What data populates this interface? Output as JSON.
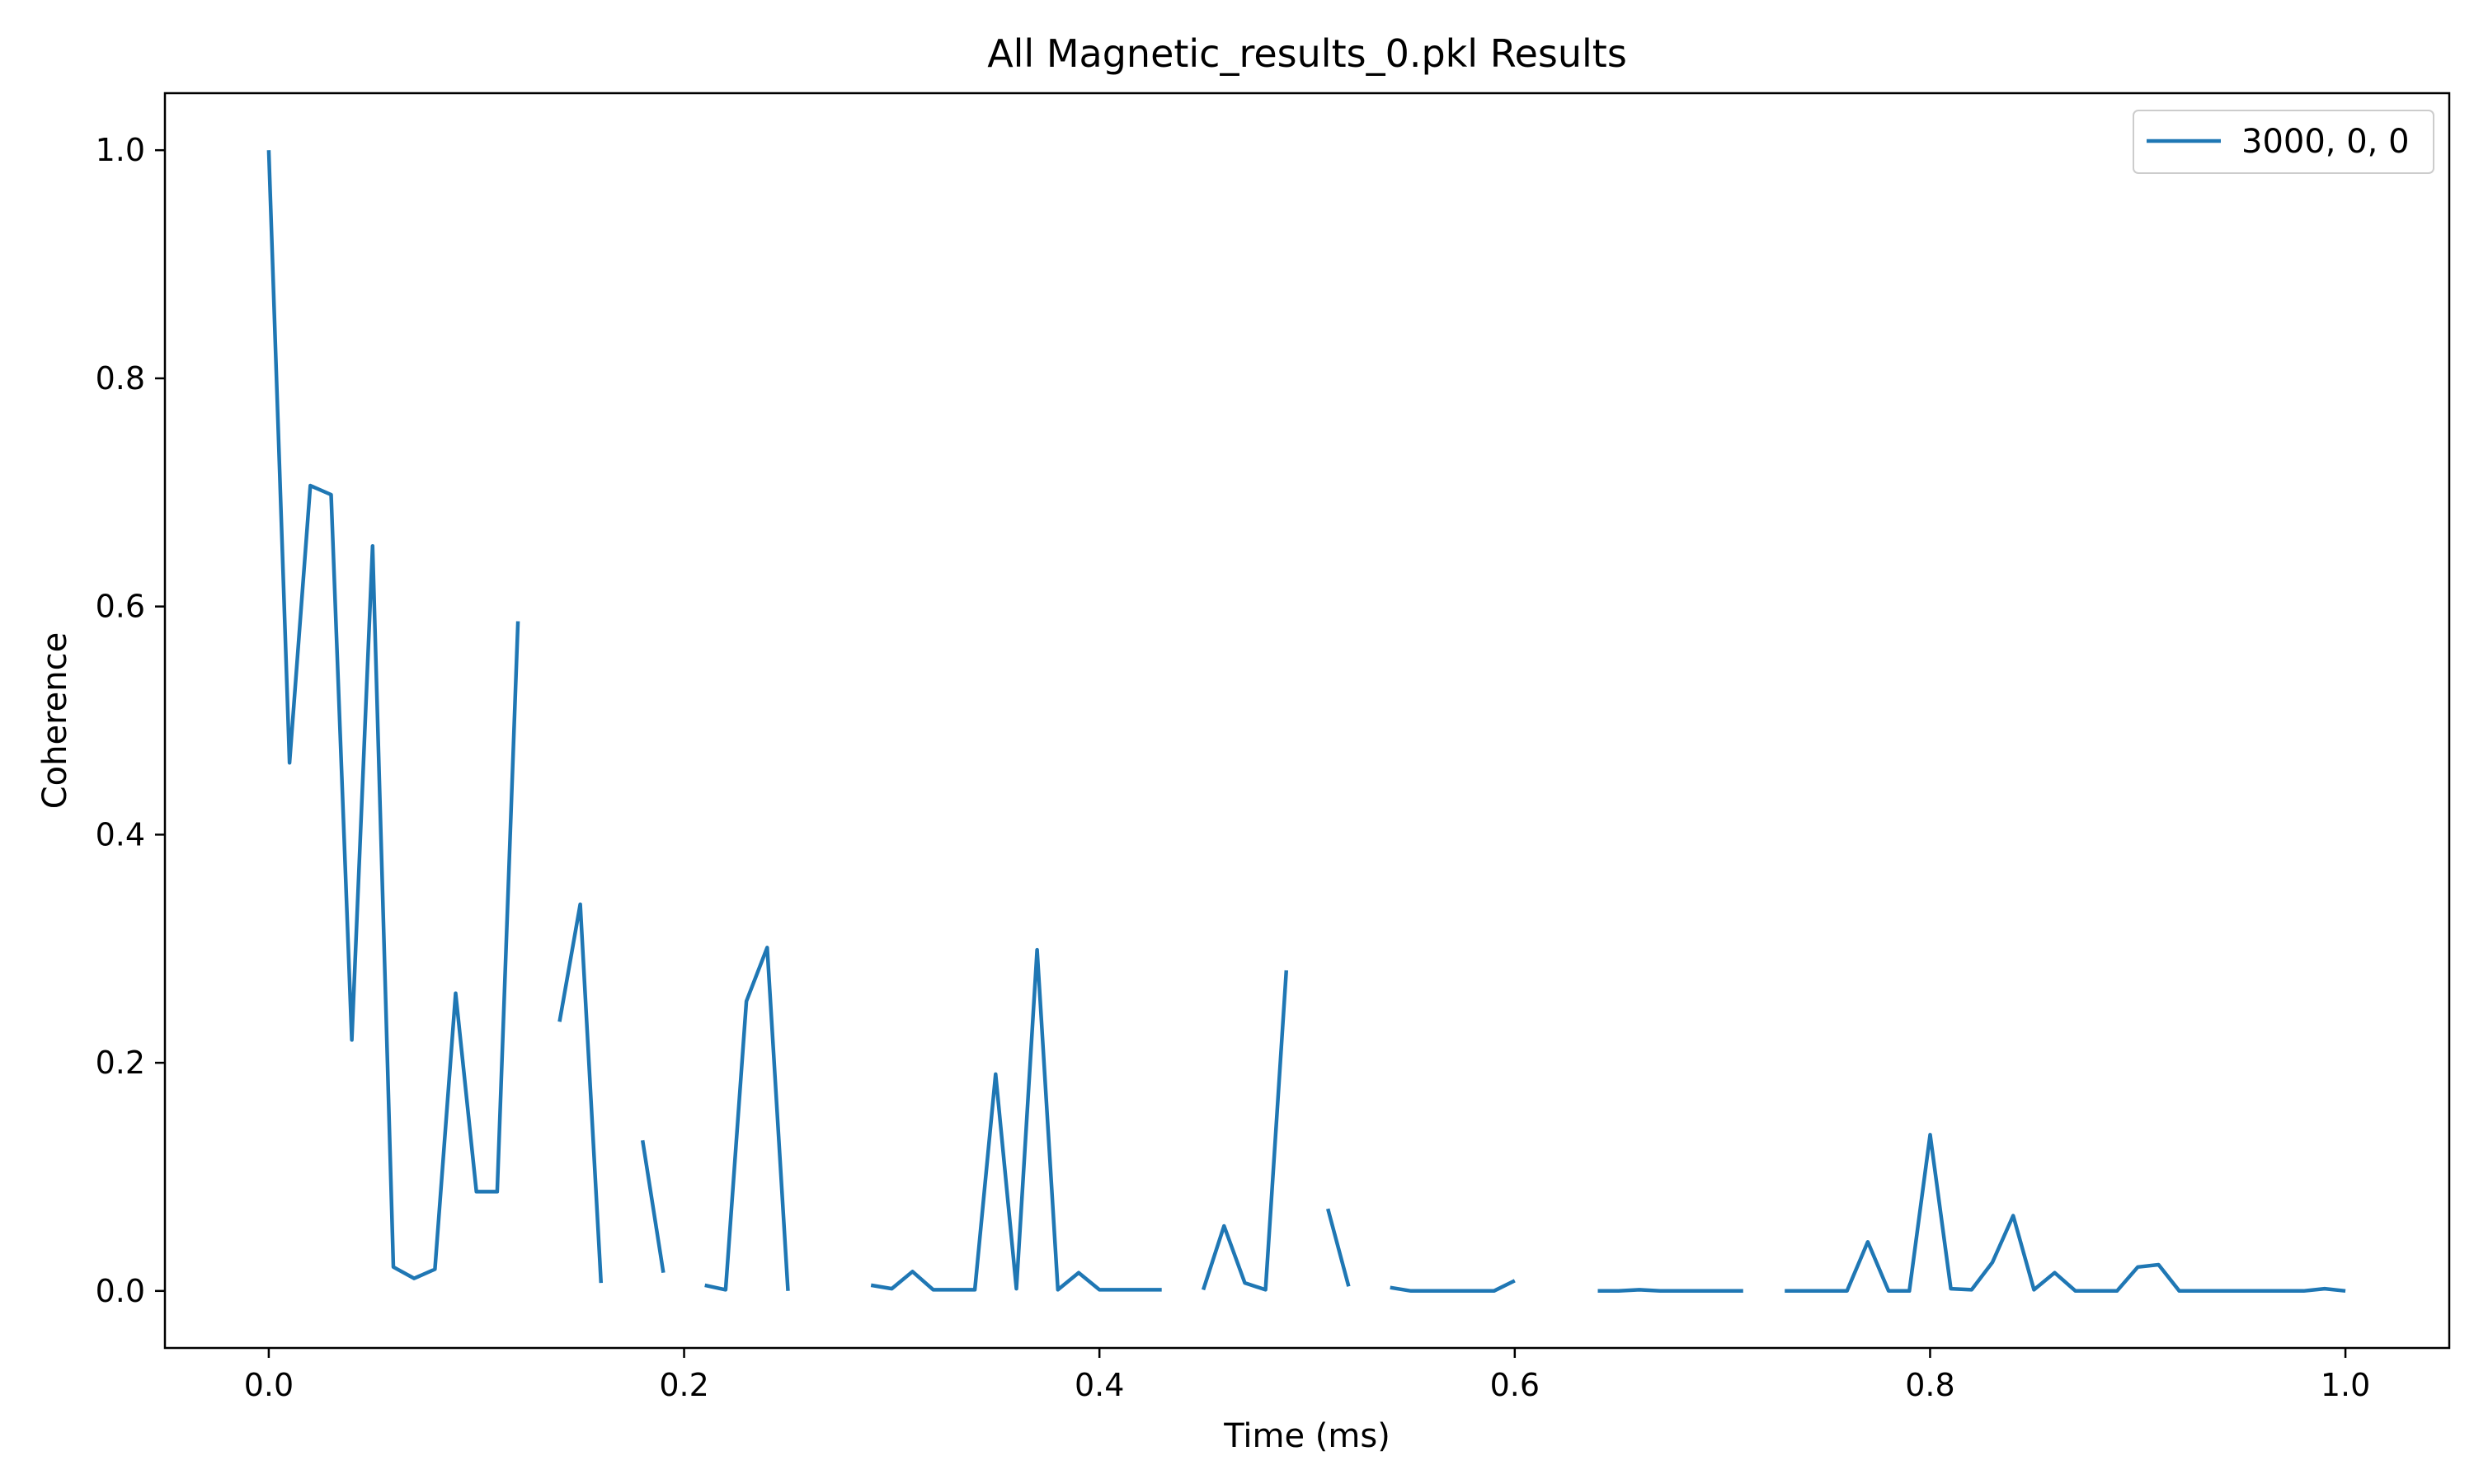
{
  "chart_data": {
    "type": "line",
    "title": "All Magnetic_results_0.pkl Results",
    "xlabel": "Time (ms)",
    "ylabel": "Coherence",
    "xlim": [
      -0.05,
      1.05
    ],
    "ylim": [
      -0.05,
      1.05
    ],
    "xticks": [
      0.0,
      0.2,
      0.4,
      0.6,
      0.8,
      1.0
    ],
    "xtick_labels": [
      "0.0",
      "0.2",
      "0.4",
      "0.6",
      "0.8",
      "1.0"
    ],
    "yticks": [
      0.0,
      0.2,
      0.4,
      0.6,
      0.8,
      1.0
    ],
    "ytick_labels": [
      "0.0",
      "0.2",
      "0.4",
      "0.6",
      "0.8",
      "1.0"
    ],
    "grid": false,
    "legend_position": "upper right",
    "series": [
      {
        "name": "3000, 0, 0",
        "color": "#1f77b4",
        "x": [
          0.0,
          0.01,
          0.02,
          0.03,
          0.04,
          0.05,
          0.06,
          0.07,
          0.08,
          0.09,
          0.1,
          0.11,
          0.12,
          0.13,
          0.14,
          0.15,
          0.16,
          0.17,
          0.18,
          0.19,
          0.2,
          0.21,
          0.22,
          0.23,
          0.24,
          0.25,
          0.26,
          0.27,
          0.28,
          0.29,
          0.3,
          0.31,
          0.32,
          0.33,
          0.34,
          0.35,
          0.36,
          0.37,
          0.38,
          0.39,
          0.4,
          0.41,
          0.42,
          0.43,
          0.44,
          0.45,
          0.46,
          0.47,
          0.48,
          0.49,
          0.5,
          0.51,
          0.52,
          0.53,
          0.54,
          0.55,
          0.56,
          0.57,
          0.58,
          0.59,
          0.6,
          0.61,
          0.62,
          0.63,
          0.64,
          0.65,
          0.66,
          0.67,
          0.68,
          0.69,
          0.7,
          0.71,
          0.72,
          0.73,
          0.74,
          0.75,
          0.76,
          0.77,
          0.78,
          0.79,
          0.8,
          0.81,
          0.82,
          0.83,
          0.84,
          0.85,
          0.86,
          0.87,
          0.88,
          0.89,
          0.9,
          0.91,
          0.92,
          0.93,
          0.94,
          0.95,
          0.96,
          0.97,
          0.98,
          0.99,
          1.0
        ],
        "y": [
          1.0,
          0.463,
          0.706,
          0.698,
          0.22,
          0.653,
          0.021,
          0.011,
          0.019,
          0.261,
          0.087,
          0.087,
          0.587,
          null,
          0.236,
          0.339,
          0.007,
          null,
          0.132,
          0.016,
          null,
          0.005,
          0.001,
          0.254,
          0.301,
          0.0,
          null,
          null,
          null,
          0.005,
          0.002,
          0.017,
          0.001,
          0.001,
          0.001,
          0.19,
          0.002,
          0.299,
          0.001,
          0.016,
          0.001,
          0.001,
          0.001,
          0.001,
          null,
          0.001,
          0.057,
          0.007,
          0.001,
          0.281,
          null,
          0.072,
          0.004,
          null,
          0.003,
          0.0,
          0.0,
          0.0,
          0.0,
          0.0,
          0.009,
          null,
          null,
          null,
          0.0,
          0.0,
          0.001,
          0.0,
          0.0,
          0.0,
          0.0,
          0.0,
          null,
          0.0,
          0.0,
          0.0,
          0.0,
          0.043,
          0.0,
          0.0,
          0.137,
          0.002,
          0.001,
          0.025,
          0.066,
          0.001,
          0.016,
          0.0,
          0.0,
          0.0,
          0.021,
          0.023,
          0.0,
          0.0,
          0.0,
          0.0,
          0.0,
          0.0,
          0.0,
          0.002,
          0.0
        ]
      }
    ]
  }
}
